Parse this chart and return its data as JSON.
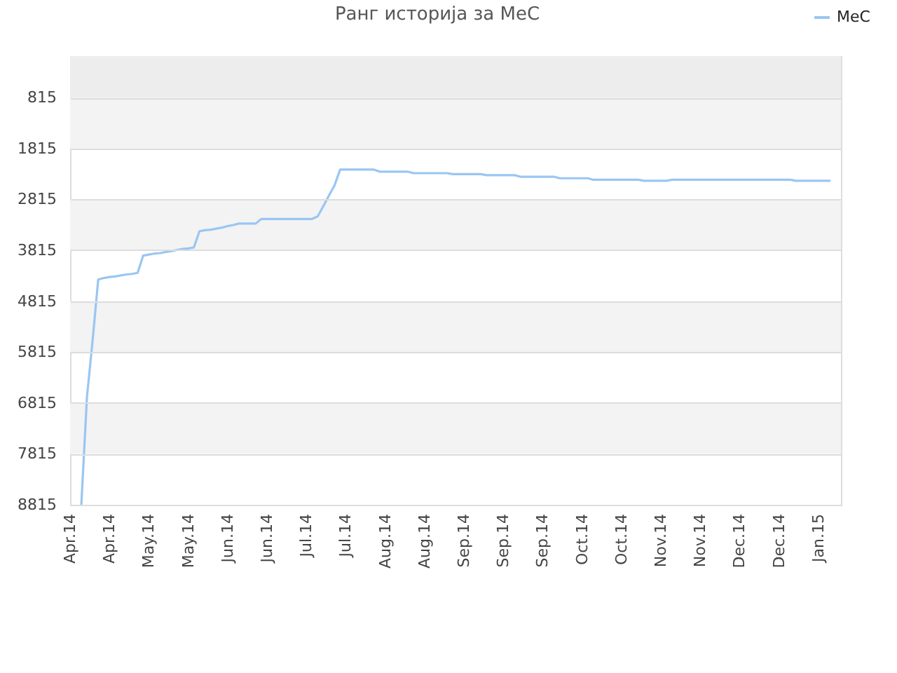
{
  "chart_data": {
    "type": "line",
    "title": "Ранг историја за МеС",
    "categories": [
      "Apr.14",
      null,
      null,
      null,
      null,
      null,
      null,
      "Apr.14",
      null,
      null,
      null,
      null,
      null,
      null,
      "May.14",
      null,
      null,
      null,
      null,
      null,
      null,
      "May.14",
      null,
      null,
      null,
      null,
      null,
      null,
      "Jun.14",
      null,
      null,
      null,
      null,
      null,
      null,
      "Jun.14",
      null,
      null,
      null,
      null,
      null,
      null,
      "Jul.14",
      null,
      null,
      null,
      null,
      null,
      null,
      "Jul.14",
      null,
      null,
      null,
      null,
      null,
      null,
      "Aug.14",
      null,
      null,
      null,
      null,
      null,
      null,
      "Aug.14",
      null,
      null,
      null,
      null,
      null,
      null,
      "Sep.14",
      null,
      null,
      null,
      null,
      null,
      null,
      "Sep.14",
      null,
      null,
      null,
      null,
      null,
      null,
      "Sep.14",
      null,
      null,
      null,
      null,
      null,
      null,
      "Oct.14",
      null,
      null,
      null,
      null,
      null,
      null,
      "Oct.14",
      null,
      null,
      null,
      null,
      null,
      null,
      "Nov.14",
      null,
      null,
      null,
      null,
      null,
      null,
      "Nov.14",
      null,
      null,
      null,
      null,
      null,
      null,
      "Dec.14",
      null,
      null,
      null,
      null,
      null,
      null,
      "Dec.14",
      null,
      null,
      null,
      null,
      null,
      null,
      "Jan.15",
      null,
      null,
      null,
      null
    ],
    "series": [
      {
        "name": "МеС",
        "color": "#9ac6f2",
        "values": [
          null,
          null,
          8810,
          6700,
          5590,
          4390,
          4360,
          4340,
          4330,
          4310,
          4290,
          4280,
          4260,
          3920,
          3900,
          3880,
          3870,
          3850,
          3830,
          3810,
          3790,
          3780,
          3760,
          3440,
          3420,
          3410,
          3390,
          3370,
          3340,
          3320,
          3290,
          3290,
          3290,
          3290,
          3200,
          3200,
          3200,
          3200,
          3200,
          3200,
          3200,
          3200,
          3200,
          3200,
          3150,
          2950,
          2740,
          2540,
          2230,
          2230,
          2230,
          2230,
          2230,
          2230,
          2230,
          2270,
          2270,
          2270,
          2270,
          2270,
          2270,
          2300,
          2300,
          2300,
          2300,
          2300,
          2300,
          2300,
          2320,
          2320,
          2320,
          2320,
          2320,
          2320,
          2340,
          2340,
          2340,
          2340,
          2340,
          2340,
          2370,
          2370,
          2370,
          2370,
          2370,
          2370,
          2370,
          2400,
          2400,
          2400,
          2400,
          2400,
          2400,
          2430,
          2430,
          2430,
          2430,
          2430,
          2430,
          2430,
          2430,
          2430,
          2450,
          2450,
          2450,
          2450,
          2450,
          2430,
          2430,
          2430,
          2430,
          2430,
          2430,
          2430,
          2430,
          2430,
          2430,
          2430,
          2430,
          2430,
          2430,
          2430,
          2430,
          2430,
          2430,
          2430,
          2430,
          2430,
          2430,
          2450,
          2450,
          2450,
          2450,
          2450,
          2450,
          2450,
          null,
          null
        ]
      }
    ],
    "ylim": [
      8815,
      0
    ],
    "yticks": [
      815,
      1815,
      2815,
      3815,
      4815,
      5815,
      6815,
      7815,
      8815
    ],
    "bands": [
      {
        "axis": "y",
        "from": 0,
        "to": 815,
        "color": "#ededed"
      },
      {
        "axis": "y",
        "from": 815,
        "to": 1815,
        "color": "#f3f3f3"
      },
      {
        "axis": "y",
        "from": 2815,
        "to": 3815,
        "color": "#f3f3f3"
      },
      {
        "axis": "y",
        "from": 4815,
        "to": 5815,
        "color": "#f3f3f3"
      },
      {
        "axis": "y",
        "from": 6815,
        "to": 7815,
        "color": "#f3f3f3"
      }
    ],
    "grid": "y",
    "legend": "top right"
  }
}
